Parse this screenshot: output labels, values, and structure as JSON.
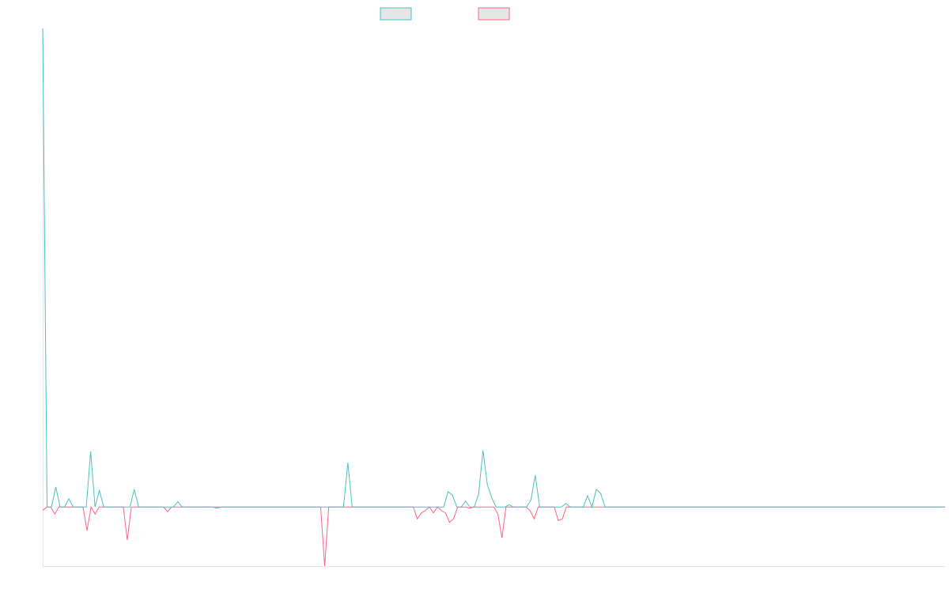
{
  "colors": {
    "series_a": "#4BC0C0",
    "series_b": "#FF6384",
    "legend_fill": "#E6E6E6",
    "axis": "#E5E5E5"
  },
  "chart_data": {
    "type": "line",
    "title": "",
    "xlabel": "",
    "ylabel": "",
    "grid": false,
    "legend": "top-center",
    "ylim": [
      -10,
      81
    ],
    "series": [
      {
        "name": "",
        "color": "#4BC0C0",
        "values": [
          81,
          0,
          0,
          3.4,
          0,
          0,
          1.4,
          0,
          0,
          0,
          0,
          9.4,
          0,
          2.8,
          0,
          0,
          0,
          0,
          0,
          0,
          0,
          3.0,
          0,
          0,
          0,
          0,
          0,
          0,
          0,
          0,
          0,
          0.9,
          0,
          0,
          0,
          0,
          0,
          0,
          0,
          0,
          -0.2,
          0,
          0,
          0,
          0,
          0,
          0,
          0,
          0,
          0,
          0,
          0,
          0,
          0,
          0,
          0,
          0,
          0,
          0,
          0,
          0,
          0,
          0,
          0,
          0,
          0,
          0,
          0,
          0,
          0,
          7.5,
          0,
          0,
          0,
          0,
          0,
          0,
          0,
          0,
          0,
          0,
          0,
          0,
          0,
          0,
          0,
          0,
          0,
          0,
          0,
          0,
          0,
          0,
          2.6,
          2.0,
          0,
          0,
          1.0,
          0,
          0,
          2.2,
          9.6,
          3.8,
          1.6,
          0,
          0,
          0,
          0.4,
          0,
          0,
          0,
          0,
          1.2,
          5.4,
          0,
          0,
          0,
          0,
          0,
          0,
          0.6,
          0,
          0,
          0,
          0,
          1.9,
          0,
          3.0,
          2.3,
          0,
          0,
          0,
          0,
          0,
          0,
          0,
          0,
          0,
          0,
          0,
          0,
          0,
          0,
          0,
          0,
          0,
          0,
          0,
          0,
          0,
          0,
          0,
          0,
          0,
          0,
          0,
          0,
          0,
          0,
          0,
          0,
          0,
          0,
          0,
          0,
          0,
          0,
          0,
          0,
          0,
          0,
          0,
          0,
          0,
          0,
          0,
          0,
          0,
          0,
          0,
          0,
          0,
          0,
          0,
          0,
          0,
          0,
          0,
          0,
          0,
          0,
          0,
          0,
          0,
          0,
          0,
          0,
          0,
          0,
          0,
          0,
          0,
          0,
          0,
          0,
          0,
          0,
          0
        ]
      },
      {
        "name": "",
        "color": "#FF6384",
        "values": [
          -0.6,
          0,
          0,
          -1.2,
          0,
          0,
          0,
          0,
          0,
          0,
          0,
          -4.0,
          0,
          -1.2,
          0,
          0,
          0,
          0,
          0,
          0,
          0,
          -5.6,
          0,
          0,
          0,
          0,
          0,
          0,
          0,
          0,
          0,
          -0.8,
          0,
          0,
          0,
          0,
          0,
          0,
          0,
          0,
          0,
          0,
          0,
          0,
          0,
          0,
          0,
          0,
          0,
          0,
          0,
          0,
          0,
          0,
          0,
          0,
          0,
          0,
          0,
          0,
          0,
          0,
          0,
          0,
          0,
          0,
          0,
          0,
          0,
          0,
          -10,
          0,
          0,
          0,
          0,
          0,
          0,
          0,
          0,
          0,
          0,
          0,
          0,
          0,
          0,
          0,
          0,
          0,
          0,
          0,
          0,
          0,
          0,
          -2.0,
          -1.0,
          -0.6,
          0,
          -1.0,
          0,
          -0.6,
          -1.0,
          -2.6,
          -2.0,
          0,
          0,
          0,
          -0.2,
          0,
          0,
          0,
          0,
          0,
          0,
          -1.2,
          -5.2,
          0,
          0,
          0,
          0,
          0,
          0,
          -0.6,
          -2.0,
          0,
          0,
          0,
          0,
          0,
          -2.3,
          -2.0,
          0,
          0,
          0,
          0,
          0,
          0,
          0,
          0,
          0,
          0,
          0,
          0,
          0,
          0,
          0,
          0,
          0,
          0,
          0,
          0,
          0,
          0,
          0,
          0,
          0,
          0,
          0,
          0,
          0,
          0,
          0,
          0,
          0,
          0,
          0,
          0,
          0,
          0,
          0,
          0,
          0,
          0,
          0,
          0,
          0,
          0,
          0,
          0,
          0,
          0,
          0,
          0,
          0,
          0,
          0,
          0,
          0,
          0,
          0,
          0,
          0,
          0,
          0,
          0,
          0,
          0,
          0,
          0,
          0,
          0,
          0,
          0,
          0,
          0,
          0,
          0,
          0,
          0,
          0,
          0,
          0,
          0,
          0,
          0,
          0,
          0,
          0,
          0,
          0,
          0,
          0,
          0,
          0,
          0,
          0
        ]
      }
    ]
  }
}
